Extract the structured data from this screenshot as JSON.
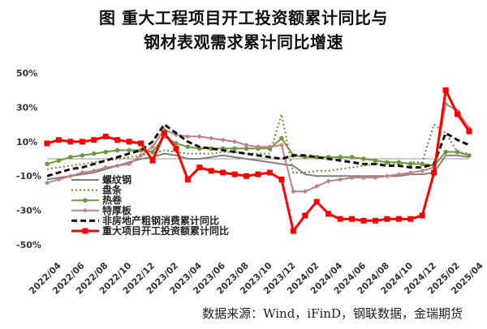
{
  "title_line1": "图  重大工程项目开工投资额累计同比与",
  "title_line2": "钢材表观需求累计同比增速",
  "source": "数据来源：Wind，iFinD，钢联数据，金瑞期货",
  "chart_data": {
    "type": "line",
    "ylim": [
      -50,
      50
    ],
    "yticks": [
      50,
      30,
      10,
      -10,
      -30,
      -50
    ],
    "ytick_labels": [
      "50%",
      "30%",
      "10%",
      "-10%",
      "-30%",
      "-50%"
    ],
    "grid": false,
    "legend_position": "left-bottom",
    "categories": [
      "2022/04",
      "2022/05",
      "2022/06",
      "2022/07",
      "2022/08",
      "2022/09",
      "2022/10",
      "2022/11",
      "2022/12",
      "2023/01",
      "2023/02",
      "2023/03",
      "2023/04",
      "2023/05",
      "2023/06",
      "2023/07",
      "2023/08",
      "2023/09",
      "2023/10",
      "2023/11",
      "2023/12",
      "2024/01",
      "2024/02",
      "2024/03",
      "2024/04",
      "2024/05",
      "2024/06",
      "2024/07",
      "2024/08",
      "2024/09",
      "2024/10",
      "2024/11",
      "2024/12",
      "2025/01",
      "2025/02",
      "2025/03",
      "2025/04"
    ],
    "xtick_labels": [
      "2022/04",
      "2022/06",
      "2022/08",
      "2022/10",
      "2022/12",
      "2023/02",
      "2023/04",
      "2023/06",
      "2023/08",
      "2023/10",
      "2023/12",
      "2024/02",
      "2024/04",
      "2024/06",
      "2024/08",
      "2024/10",
      "2024/12",
      "2025/02",
      "2025/04"
    ],
    "series": [
      {
        "name": "螺纹钢",
        "color": "#7f7f7f",
        "style": "solid",
        "marker": "none",
        "values": [
          -12,
          -11,
          -10,
          -9,
          -8,
          -6,
          -4,
          -2,
          0,
          1,
          3,
          2,
          0,
          0,
          1,
          2,
          1,
          0,
          -1,
          -2,
          -3,
          -4,
          -9,
          -10,
          -10,
          -10,
          -10,
          -10,
          -10,
          -10,
          -10,
          -9,
          -9,
          -8,
          2,
          2,
          1
        ]
      },
      {
        "name": "盘条",
        "color": "#8c7a2b",
        "style": "dotted",
        "marker": "none",
        "values": [
          -6,
          -5,
          -4,
          -3,
          -2,
          -1,
          0,
          1,
          2,
          3,
          5,
          4,
          3,
          3,
          3,
          4,
          4,
          3,
          3,
          3,
          26,
          -8,
          -8,
          -7,
          -7,
          -6,
          -5,
          -4,
          -3,
          -3,
          -3,
          -2,
          -2,
          20,
          15,
          4,
          3
        ]
      },
      {
        "name": "热卷",
        "color": "#6a9a3a",
        "style": "solid",
        "marker": "circle",
        "values": [
          -3,
          -1,
          1,
          2,
          3,
          4,
          5,
          5,
          5,
          4,
          13,
          9,
          7,
          6,
          6,
          6,
          6,
          6,
          6,
          6,
          12,
          2,
          1,
          1,
          1,
          1,
          1,
          0,
          -1,
          -2,
          -2,
          -3,
          -3,
          -4,
          4,
          4,
          2
        ]
      },
      {
        "name": "特厚板",
        "color": "#c08080",
        "style": "solid",
        "marker": "diamond",
        "values": [
          -14,
          -12,
          -10,
          -8,
          -7,
          -5,
          -4,
          -3,
          2,
          7,
          17,
          14,
          13,
          13,
          12,
          11,
          10,
          8,
          7,
          7,
          8,
          -19,
          -19,
          -16,
          -13,
          -12,
          -11,
          -11,
          -11,
          -10,
          -9,
          -8,
          -7,
          -5,
          32,
          28,
          18
        ]
      },
      {
        "name": "非房地产粗钢消费累计同比",
        "color": "#111111",
        "style": "dashed",
        "marker": "none",
        "values": [
          -10,
          -8,
          -6,
          -5,
          -3,
          -1,
          1,
          3,
          5,
          10,
          20,
          15,
          10,
          7,
          6,
          5,
          4,
          3,
          2,
          1,
          0,
          2,
          2,
          1,
          0,
          -1,
          -2,
          -3,
          -3,
          -4,
          -4,
          -5,
          -5,
          -3,
          15,
          11,
          8
        ]
      },
      {
        "name": "重大项目开工投资额累计同比",
        "color": "#ff0000",
        "style": "solid",
        "marker": "square",
        "values": [
          9,
          11,
          10,
          10,
          11,
          13,
          11,
          10,
          9,
          -1,
          15,
          6,
          -12,
          -5,
          -7,
          -8,
          -9,
          -10,
          -9,
          -8,
          -12,
          -42,
          -33,
          -25,
          -32,
          -35,
          -35,
          -36,
          -36,
          -35,
          -35,
          -35,
          -33,
          -8,
          40,
          26,
          16
        ]
      }
    ]
  }
}
